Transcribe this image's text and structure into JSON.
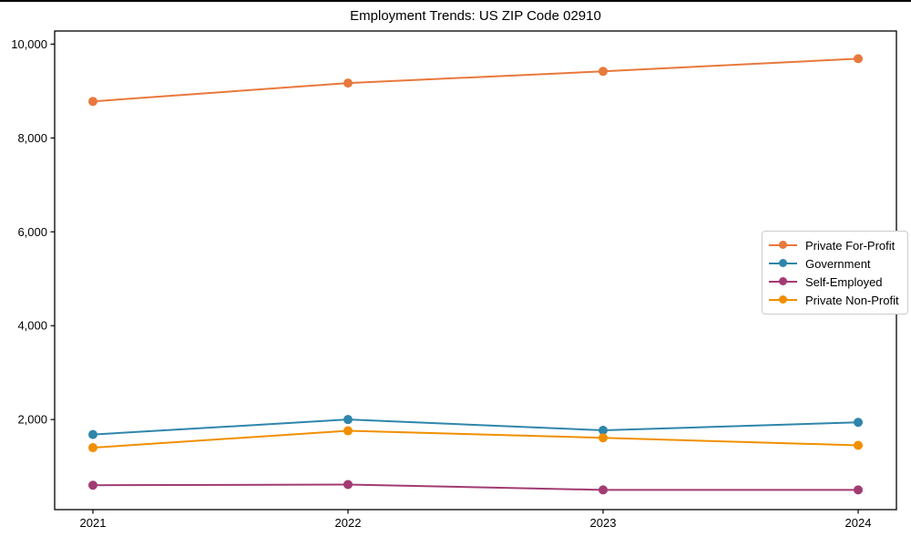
{
  "chart_data": {
    "type": "line",
    "title": "Employment Trends: US ZIP Code 02910",
    "xlabel": "",
    "ylabel": "",
    "x": [
      2021,
      2022,
      2023,
      2024
    ],
    "xtick_labels": [
      "2021",
      "2022",
      "2023",
      "2024"
    ],
    "yticks": [
      {
        "value": 2000,
        "label": "2,000"
      },
      {
        "value": 4000,
        "label": "4,000"
      },
      {
        "value": 6000,
        "label": "6,000"
      },
      {
        "value": 8000,
        "label": "8,000"
      },
      {
        "value": 10000,
        "label": "10,000"
      }
    ],
    "xlim": [
      2020.85,
      2024.15
    ],
    "ylim": [
      80,
      10280
    ],
    "grid": false,
    "legend_position": "center right",
    "marker": "circle",
    "background": "#ffffff",
    "series": [
      {
        "name": "Private For-Profit",
        "color": "#E8783C",
        "values": [
          8780,
          9170,
          9420,
          9690
        ]
      },
      {
        "name": "Government",
        "color": "#2E86AB",
        "values": [
          1680,
          2000,
          1770,
          1940
        ]
      },
      {
        "name": "Self-Employed",
        "color": "#A23B72",
        "values": [
          600,
          615,
          500,
          500
        ]
      },
      {
        "name": "Private Non-Profit",
        "color": "#F18F01",
        "values": [
          1400,
          1760,
          1610,
          1450
        ]
      }
    ]
  }
}
